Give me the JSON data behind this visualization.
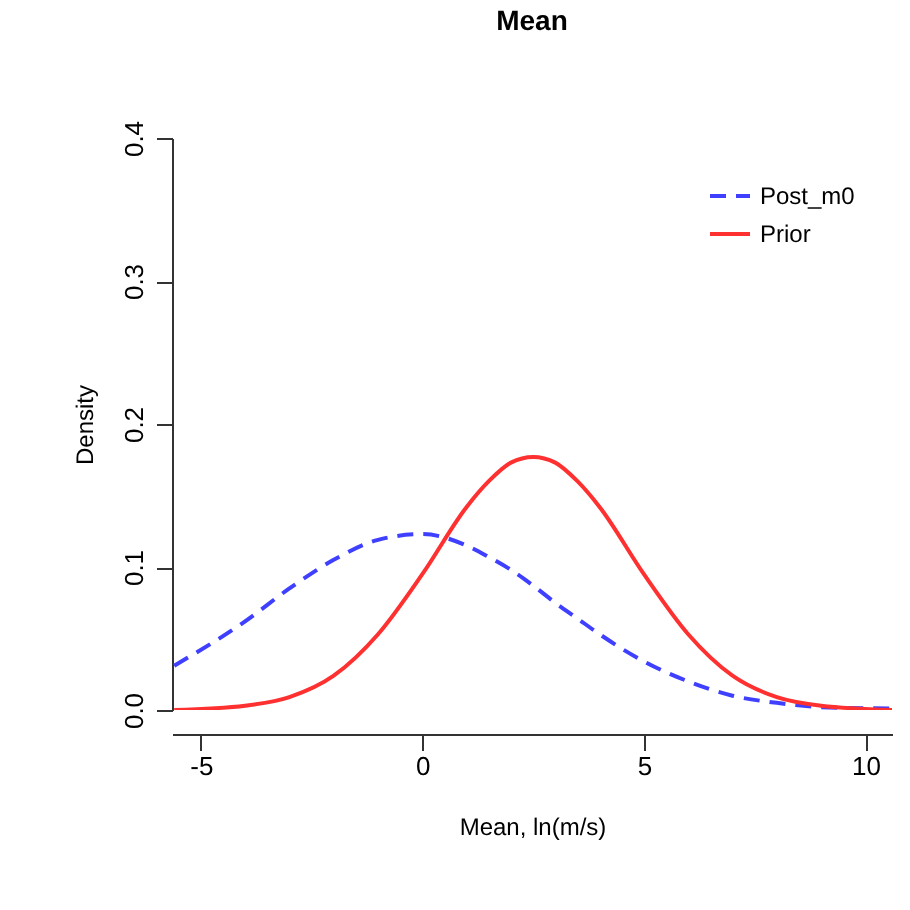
{
  "chart_data": {
    "type": "line",
    "title": "Mean",
    "xlabel": "Mean, ln(m/s)",
    "ylabel": "Density",
    "xlim": [
      -5.65,
      10.6
    ],
    "xticks": [
      -5,
      0,
      5,
      10
    ],
    "ylim": [
      0,
      0.4
    ],
    "yticks": [
      {
        "value": 0,
        "label": "0.0"
      },
      {
        "value": 0.1,
        "label": "0.1"
      },
      {
        "value": 0.2,
        "label": "0.2"
      },
      {
        "value": 0.3,
        "label": "0.3"
      },
      {
        "value": 0.4,
        "label": "0.4"
      }
    ],
    "grid": false,
    "legend": "top right",
    "x": [
      -5.6,
      -4,
      -3,
      -2,
      -1,
      0,
      1,
      1.5,
      2,
      2.5,
      3,
      3.5,
      4,
      5,
      6,
      7,
      8,
      9,
      10.6
    ],
    "series": [
      {
        "name": "Post_m0",
        "color": "#3f3fff",
        "line_style": "dashed",
        "values": [
          0.031,
          0.062,
          0.085,
          0.105,
          0.119,
          0.123,
          0.115,
          0.107,
          0.098,
          0.087,
          0.075,
          0.064,
          0.053,
          0.034,
          0.02,
          0.01,
          0.005,
          0.002,
          0.001
        ]
      },
      {
        "name": "Prior",
        "color": "#ff3030",
        "line_style": "solid",
        "values": [
          0,
          0.003,
          0.009,
          0.024,
          0.053,
          0.095,
          0.142,
          0.16,
          0.173,
          0.177,
          0.173,
          0.16,
          0.142,
          0.095,
          0.053,
          0.024,
          0.009,
          0.003,
          0
        ]
      }
    ]
  }
}
